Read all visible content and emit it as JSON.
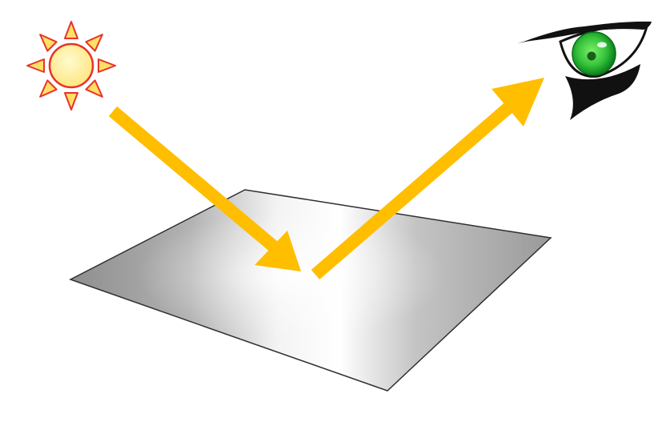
{
  "diagram": {
    "type": "specular-reflection-illustration",
    "elements": [
      {
        "name": "sun-icon",
        "kind": "light-source"
      },
      {
        "name": "incident-ray-arrow",
        "kind": "incoming-light"
      },
      {
        "name": "reflective-surface",
        "kind": "shiny-metal-plane"
      },
      {
        "name": "reflected-ray-arrow",
        "kind": "outgoing-light"
      },
      {
        "name": "eye-icon",
        "kind": "observer"
      }
    ]
  },
  "colors": {
    "background": "#ffffff",
    "arrow": "#FFBE00",
    "sun_fill": "#FFEE88",
    "sun_stroke": "#E8322A",
    "surface_light": "#FAFAFA",
    "surface_mid": "#C7C7C7",
    "surface_dark": "#8A8A8A",
    "surface_edge": "#2F2F2F",
    "iris_outer": "#0A7F1C",
    "iris_inner": "#58D84B",
    "eye_outline": "#111111"
  }
}
